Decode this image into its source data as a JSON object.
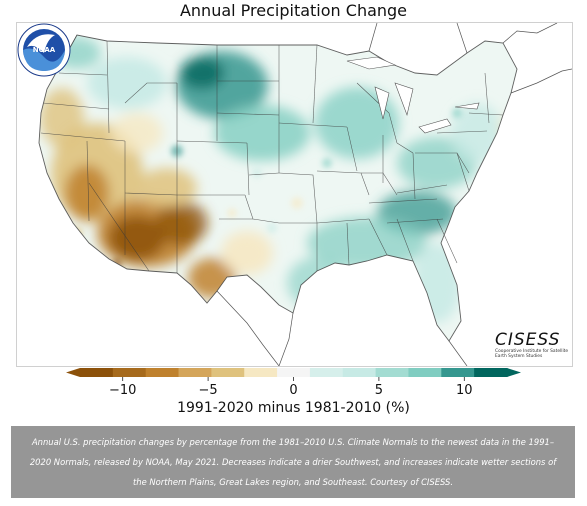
{
  "map": {
    "title": "Annual Precipitation Change",
    "region": "Contiguous United States",
    "palette": {
      "strong_dry": "#8c510a",
      "dry": "#bf812d",
      "slightly_dry": "#dfc27d",
      "mild_dry": "#f6e8c3",
      "neutral": "#f5f5f5",
      "mild_wet": "#c7eae5",
      "wet": "#80cdc1",
      "strong_wet": "#35978f",
      "very_wet": "#01665e"
    },
    "colorbar": {
      "ticks": [
        -10,
        -5,
        0,
        5,
        10
      ],
      "tick_labels": [
        "−10",
        "−5",
        "0",
        "5",
        "10"
      ],
      "range": [
        -12.5,
        12.5
      ],
      "colors": [
        "#8c510a",
        "#a66a1c",
        "#bf812d",
        "#d4a55a",
        "#dfc27d",
        "#f6e8c3",
        "#f5f5f5",
        "#d6efeb",
        "#c7eae5",
        "#a3dcd2",
        "#80cdc1",
        "#35978f",
        "#01665e"
      ],
      "label": "1991-2020 minus 1981-2010 (%)"
    },
    "logos": {
      "noaa_text": "NOAA",
      "cisess_text": "CISESS",
      "cisess_subtitle": "Cooperative Institute for Satellite Earth System Studies"
    }
  },
  "caption": "Annual U.S. precipitation changes by percentage from the 1981–2010 U.S. Climate Normals to the newest data in the 1991–2020 Normals, released by NOAA, May 2021. Decreases indicate a drier Southwest, and increases indicate wetter sections of the Northern Plains, Great Lakes region, and Southeast. Courtesy of CISESS."
}
